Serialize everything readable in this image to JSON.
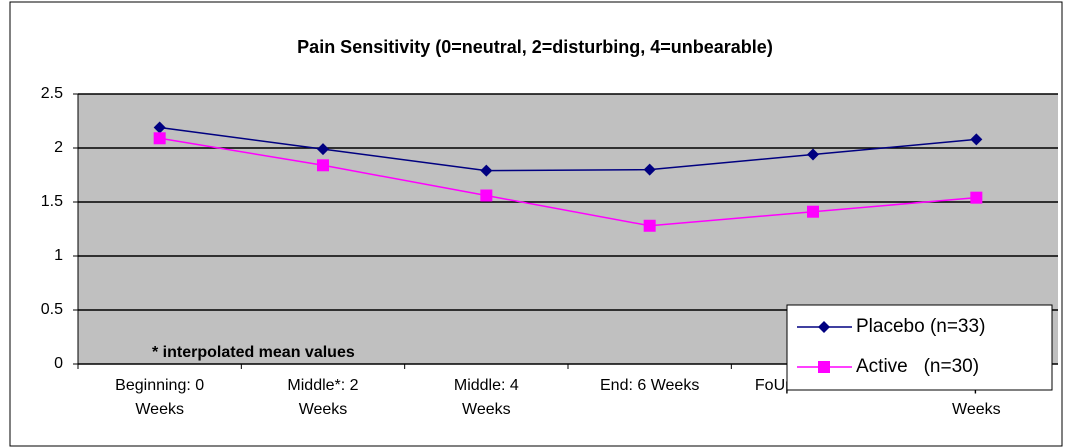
{
  "chart_data": {
    "type": "line",
    "title": "Pain Sensitivity (0=neutral, 2=disturbing, 4=unbearable)",
    "annotation": "* interpolated mean values",
    "categories": [
      "Beginning: 0\nWeeks",
      "Middle*: 2\nWeeks",
      "Middle: 4\nWeeks",
      "End: 6 Weeks",
      "FoUp*: 8 Weeks",
      "FoUp: 10\nWeeks"
    ],
    "series": [
      {
        "name": "Placebo (n=33)",
        "color": "#000080",
        "marker": "diamond",
        "values": [
          2.19,
          1.99,
          1.79,
          1.8,
          1.94,
          2.08
        ]
      },
      {
        "name": "Active   (n=30)",
        "color": "#ff00ff",
        "marker": "square",
        "values": [
          2.09,
          1.84,
          1.56,
          1.28,
          1.41,
          1.54
        ]
      }
    ],
    "ylim": [
      0,
      2.5
    ],
    "yticks": [
      0,
      0.5,
      1,
      1.5,
      2,
      2.5
    ],
    "grid": true,
    "legend": "lower right"
  }
}
